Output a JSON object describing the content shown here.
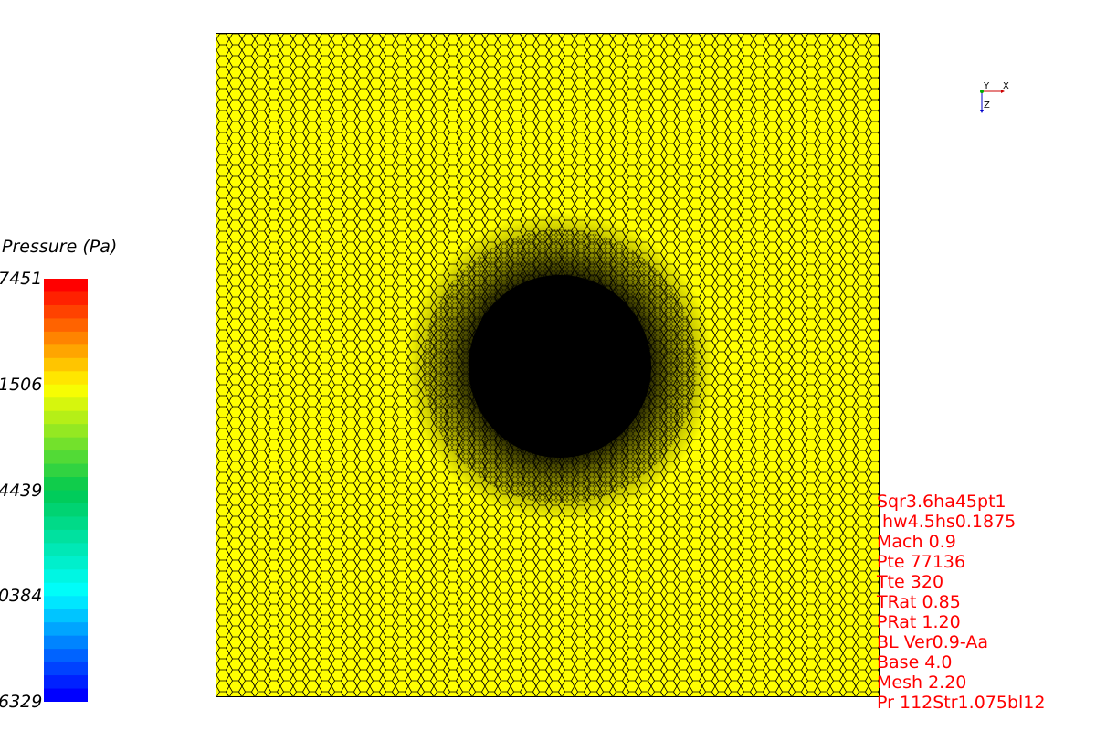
{
  "legend": {
    "title": "Pressure (Pa)",
    "ticks": [
      {
        "label": "7451",
        "fraction": 1.0
      },
      {
        "label": "1506",
        "fraction": 0.75
      },
      {
        "label": "4439",
        "fraction": 0.5
      },
      {
        "label": "0384",
        "fraction": 0.25
      },
      {
        "label": "6329",
        "fraction": 0.0
      }
    ],
    "band_count": 32,
    "colors": {
      "max": "#ff0000",
      "mid": "#ffff00",
      "min": "#0000ff"
    }
  },
  "viewport": {
    "mesh_color": "#ffff00",
    "edge_color": "#000000",
    "object_color": "#000000"
  },
  "axes": {
    "x_label": "X",
    "y_label": "Y",
    "z_label": "Z"
  },
  "annotations": {
    "color": "#ff0000",
    "lines": [
      "Sqr3.6ha45pt1",
      " hw4.5hs0.1875",
      "Mach 0.9",
      "Pte 77136",
      "Tte 320",
      "TRat 0.85",
      "PRat 1.20",
      "BL Ver0.9-Aa",
      "Base 4.0",
      "Mesh 2.20",
      "Pr 112Str1.075bl12"
    ]
  }
}
